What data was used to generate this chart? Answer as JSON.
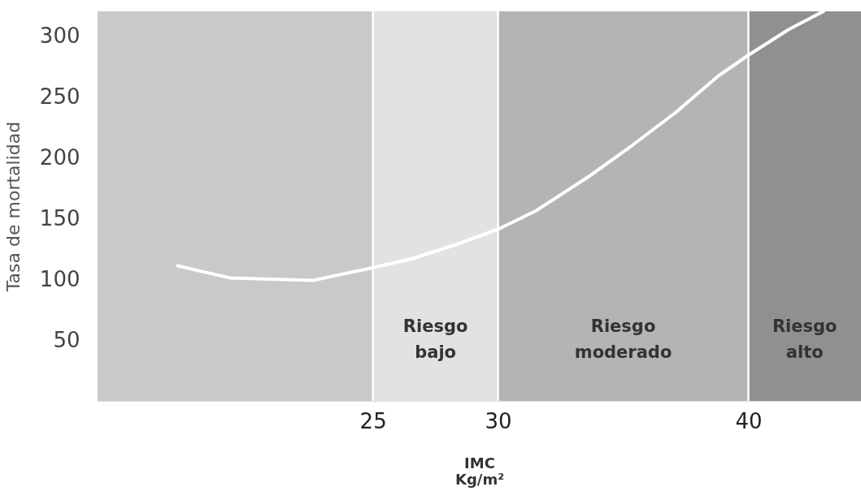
{
  "chart_data": {
    "type": "line",
    "xlabel": "IMC\nKg/m²",
    "ylabel": "Tasa de mortalidad",
    "x": [
      17.2,
      19.3,
      22.6,
      24.9,
      26.6,
      28.4,
      30,
      31.5,
      33.6,
      35.3,
      37.1,
      38.8,
      40,
      41.6,
      43
    ],
    "series": [
      {
        "color": "#ffffff",
        "values": [
          111,
          101,
          99,
          109,
          117,
          129,
          141,
          156,
          184,
          209,
          237,
          267,
          284,
          305,
          320
        ]
      }
    ],
    "xlim": [
      14,
      44.5
    ],
    "ylim": [
      0,
      320
    ],
    "xticks": [
      25,
      30,
      40
    ],
    "yticks": [
      50,
      100,
      150,
      200,
      250,
      300
    ],
    "bands": [
      {
        "axis": "x",
        "from": 25,
        "to": 30,
        "label": "Riesgo\nbajo",
        "color": "#e2e2e4"
      },
      {
        "axis": "x",
        "from": 30,
        "to": 40,
        "label": "Riesgo\nmoderado",
        "color": "#b4b4b6"
      },
      {
        "axis": "x",
        "from": 40,
        "to": 44.5,
        "label": "Riesgo\nalto",
        "color": "#909092"
      }
    ],
    "ref_lines": [
      {
        "axis": "x",
        "value": 25,
        "color": "#ffffff"
      },
      {
        "axis": "x",
        "value": 30,
        "color": "#ffffff"
      },
      {
        "axis": "x",
        "value": 40,
        "color": "#ffffff"
      }
    ],
    "marker": "none",
    "line_style": "solid"
  }
}
